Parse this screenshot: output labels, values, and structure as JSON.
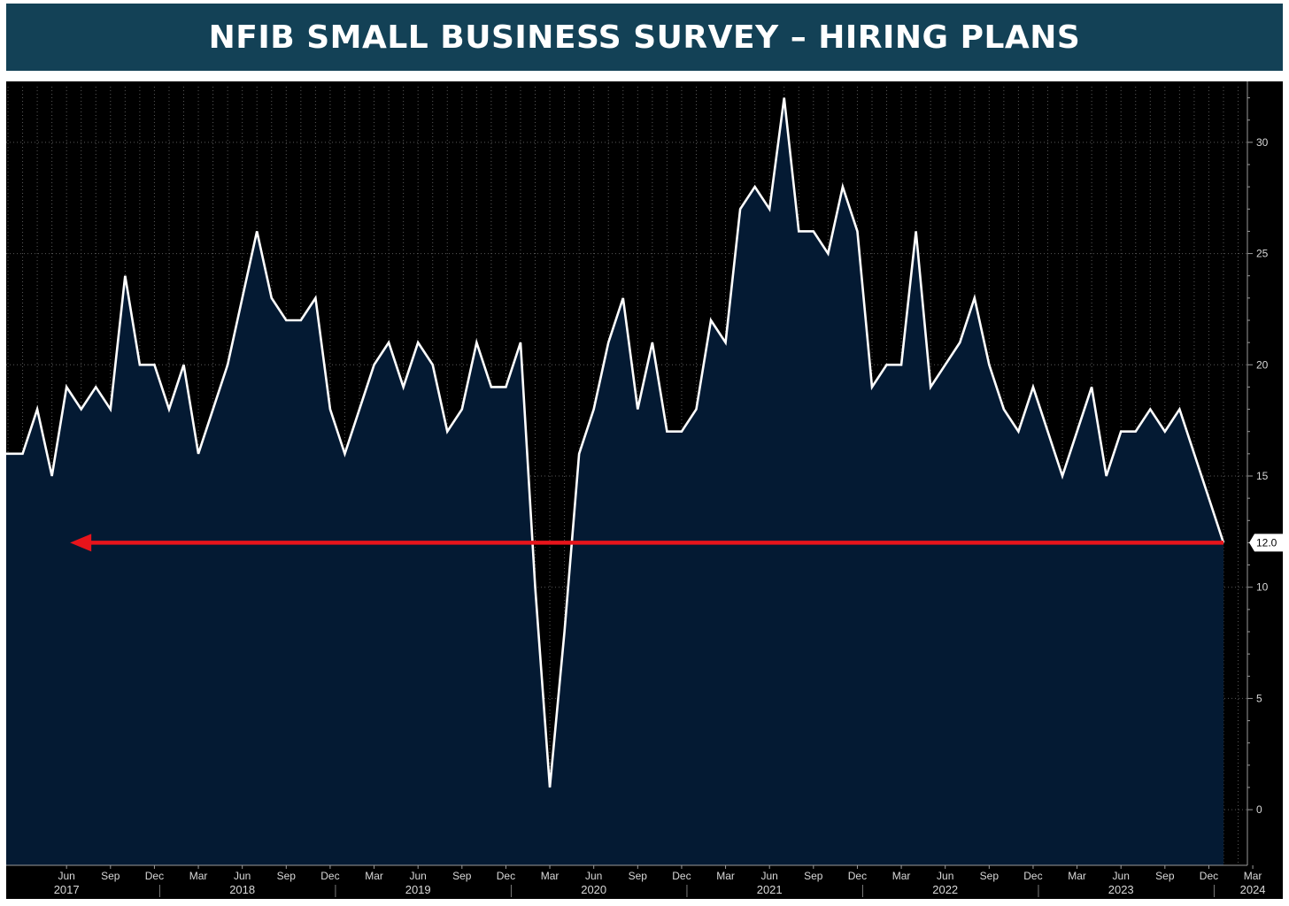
{
  "title": "NFIB SMALL BUSINESS SURVEY – HIRING PLANS",
  "colors": {
    "banner": "#134156",
    "background": "#000000",
    "area_fill": "#041a33",
    "line": "#ffffff",
    "arrow": "#e8141b",
    "grid": "#5a5a5a"
  },
  "chart_data": {
    "type": "area",
    "title": "NFIB SMALL BUSINESS SURVEY – HIRING PLANS",
    "xlabel": "",
    "ylabel": "",
    "ylim": [
      -2.5,
      32.5
    ],
    "yticks": [
      0,
      5,
      10,
      15,
      20,
      25,
      30
    ],
    "grid": true,
    "x_start": "2017-02",
    "x_end": "2024-03",
    "month_ticks": [
      {
        "date": "2017-06",
        "label": "Jun"
      },
      {
        "date": "2017-09",
        "label": "Sep"
      },
      {
        "date": "2017-12",
        "label": "Dec"
      },
      {
        "date": "2018-03",
        "label": "Mar"
      },
      {
        "date": "2018-06",
        "label": "Jun"
      },
      {
        "date": "2018-09",
        "label": "Sep"
      },
      {
        "date": "2018-12",
        "label": "Dec"
      },
      {
        "date": "2019-03",
        "label": "Mar"
      },
      {
        "date": "2019-06",
        "label": "Jun"
      },
      {
        "date": "2019-09",
        "label": "Sep"
      },
      {
        "date": "2019-12",
        "label": "Dec"
      },
      {
        "date": "2020-03",
        "label": "Mar"
      },
      {
        "date": "2020-06",
        "label": "Jun"
      },
      {
        "date": "2020-09",
        "label": "Sep"
      },
      {
        "date": "2020-12",
        "label": "Dec"
      },
      {
        "date": "2021-03",
        "label": "Mar"
      },
      {
        "date": "2021-06",
        "label": "Jun"
      },
      {
        "date": "2021-09",
        "label": "Sep"
      },
      {
        "date": "2021-12",
        "label": "Dec"
      },
      {
        "date": "2022-03",
        "label": "Mar"
      },
      {
        "date": "2022-06",
        "label": "Jun"
      },
      {
        "date": "2022-09",
        "label": "Sep"
      },
      {
        "date": "2022-12",
        "label": "Dec"
      },
      {
        "date": "2023-03",
        "label": "Mar"
      },
      {
        "date": "2023-06",
        "label": "Jun"
      },
      {
        "date": "2023-09",
        "label": "Sep"
      },
      {
        "date": "2023-12",
        "label": "Dec"
      },
      {
        "date": "2024-03",
        "label": "Mar"
      }
    ],
    "year_labels": [
      {
        "date": "2017-06",
        "label": "2017"
      },
      {
        "date": "2018-06",
        "label": "2018"
      },
      {
        "date": "2019-06",
        "label": "2019"
      },
      {
        "date": "2020-06",
        "label": "2020"
      },
      {
        "date": "2021-06",
        "label": "2021"
      },
      {
        "date": "2022-06",
        "label": "2022"
      },
      {
        "date": "2023-06",
        "label": "2023"
      },
      {
        "date": "2024-03",
        "label": "2024"
      }
    ],
    "year_separators": [
      "2017-12",
      "2018-12",
      "2019-12",
      "2020-12",
      "2021-12",
      "2022-12",
      "2023-12"
    ],
    "series": [
      {
        "points": [
          [
            "2017-02",
            16
          ],
          [
            "2017-03",
            16
          ],
          [
            "2017-04",
            18
          ],
          [
            "2017-05",
            15
          ],
          [
            "2017-06",
            19
          ],
          [
            "2017-07",
            18
          ],
          [
            "2017-08",
            19
          ],
          [
            "2017-09",
            18
          ],
          [
            "2017-10",
            24
          ],
          [
            "2017-11",
            20
          ],
          [
            "2017-12",
            20
          ],
          [
            "2018-01",
            18
          ],
          [
            "2018-02",
            20
          ],
          [
            "2018-03",
            16
          ],
          [
            "2018-04",
            18
          ],
          [
            "2018-05",
            20
          ],
          [
            "2018-06",
            23
          ],
          [
            "2018-07",
            26
          ],
          [
            "2018-08",
            23
          ],
          [
            "2018-09",
            22
          ],
          [
            "2018-10",
            22
          ],
          [
            "2018-11",
            23
          ],
          [
            "2018-12",
            18
          ],
          [
            "2019-01",
            16
          ],
          [
            "2019-02",
            18
          ],
          [
            "2019-03",
            20
          ],
          [
            "2019-04",
            21
          ],
          [
            "2019-05",
            19
          ],
          [
            "2019-06",
            21
          ],
          [
            "2019-07",
            20
          ],
          [
            "2019-08",
            17
          ],
          [
            "2019-09",
            18
          ],
          [
            "2019-10",
            21
          ],
          [
            "2019-11",
            19
          ],
          [
            "2019-12",
            19
          ],
          [
            "2020-01",
            21
          ],
          [
            "2020-02",
            10
          ],
          [
            "2020-03",
            1
          ],
          [
            "2020-04",
            8
          ],
          [
            "2020-05",
            16
          ],
          [
            "2020-06",
            18
          ],
          [
            "2020-07",
            21
          ],
          [
            "2020-08",
            23
          ],
          [
            "2020-09",
            18
          ],
          [
            "2020-10",
            21
          ],
          [
            "2020-11",
            17
          ],
          [
            "2020-12",
            17
          ],
          [
            "2021-01",
            18
          ],
          [
            "2021-02",
            22
          ],
          [
            "2021-03",
            21
          ],
          [
            "2021-04",
            27
          ],
          [
            "2021-05",
            28
          ],
          [
            "2021-06",
            27
          ],
          [
            "2021-07",
            32
          ],
          [
            "2021-08",
            26
          ],
          [
            "2021-09",
            26
          ],
          [
            "2021-10",
            25
          ],
          [
            "2021-11",
            28
          ],
          [
            "2021-12",
            26
          ],
          [
            "2022-01",
            19
          ],
          [
            "2022-02",
            20
          ],
          [
            "2022-03",
            20
          ],
          [
            "2022-04",
            26
          ],
          [
            "2022-05",
            19
          ],
          [
            "2022-06",
            20
          ],
          [
            "2022-07",
            21
          ],
          [
            "2022-08",
            23
          ],
          [
            "2022-09",
            20
          ],
          [
            "2022-10",
            18
          ],
          [
            "2022-11",
            17
          ],
          [
            "2022-12",
            19
          ],
          [
            "2023-01",
            17
          ],
          [
            "2023-02",
            15
          ],
          [
            "2023-03",
            17
          ],
          [
            "2023-04",
            19
          ],
          [
            "2023-05",
            15
          ],
          [
            "2023-06",
            17
          ],
          [
            "2023-07",
            17
          ],
          [
            "2023-08",
            18
          ],
          [
            "2023-09",
            17
          ],
          [
            "2023-10",
            18
          ],
          [
            "2023-11",
            16
          ],
          [
            "2023-12",
            14
          ],
          [
            "2024-01",
            12
          ]
        ]
      }
    ],
    "last_value_label": "12.0",
    "annotation": {
      "type": "arrow",
      "y": 12,
      "from": "2024-01",
      "to": "2017-06"
    }
  }
}
